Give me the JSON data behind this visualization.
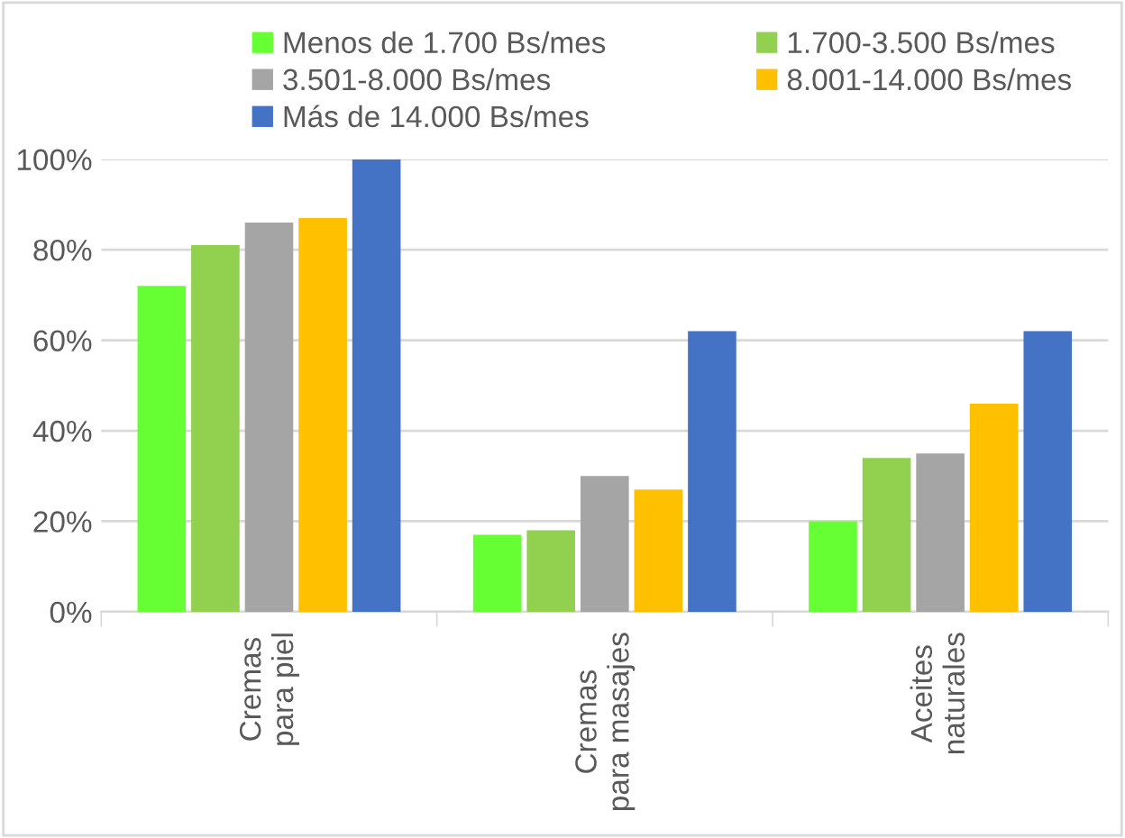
{
  "chart_data": {
    "type": "bar",
    "categories": [
      "Cremas\npara piel",
      "Cremas\npara masajes",
      "Aceites\nnaturales"
    ],
    "series": [
      {
        "name": "Menos de 1.700 Bs/mes",
        "color": "#66ff33",
        "values": [
          72,
          17,
          20
        ]
      },
      {
        "name": "1.700-3.500 Bs/mes",
        "color": "#92d050",
        "values": [
          81,
          18,
          34
        ]
      },
      {
        "name": "3.501-8.000 Bs/mes",
        "color": "#a5a5a5",
        "values": [
          86,
          30,
          35
        ]
      },
      {
        "name": "8.001-14.000 Bs/mes",
        "color": "#ffc000",
        "values": [
          87,
          27,
          46
        ]
      },
      {
        "name": "Más de 14.000 Bs/mes",
        "color": "#4472c4",
        "values": [
          100,
          62,
          62
        ]
      }
    ],
    "ylim": [
      0,
      100
    ],
    "yticks": [
      {
        "value": 0,
        "label": "0%"
      },
      {
        "value": 20,
        "label": "20%"
      },
      {
        "value": 40,
        "label": "40%"
      },
      {
        "value": 60,
        "label": "60%"
      },
      {
        "value": 80,
        "label": "80%"
      },
      {
        "value": 100,
        "label": "100%"
      }
    ],
    "grid": "y",
    "legend": "top"
  }
}
